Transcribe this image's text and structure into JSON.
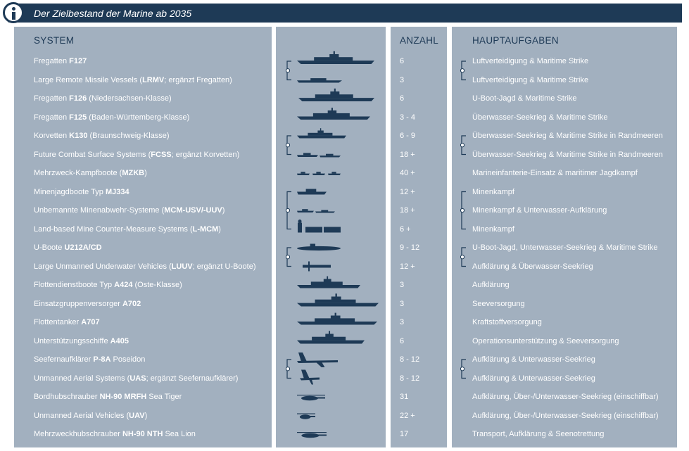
{
  "header": {
    "title": "Der Zielbestand der Marine ab 2035",
    "icon": "info-icon"
  },
  "columns": {
    "system": "SYSTEM",
    "count": "ANZAHL",
    "tasks": "HAUPTAUFGABEN"
  },
  "colors": {
    "header": "#1e3a56",
    "panel": "#a2b0bf",
    "silhouette": "#1e3a56",
    "text": "#ffffff"
  },
  "rows": [
    {
      "pre": "Fregatten ",
      "bold": "F127",
      "post": "",
      "count": "6",
      "task": "Luftverteidigung & Maritime Strike",
      "icon": "frigate-f127-icon"
    },
    {
      "pre": "Large Remote Missile Vessels (",
      "bold": "LRMV",
      "post": "; ergänzt Fregatten)",
      "count": "3",
      "task": "Luftverteidigung & Maritime Strike",
      "icon": "missile-vessel-icon"
    },
    {
      "pre": "Fregatten ",
      "bold": "F126",
      "post": " (Niedersachsen-Klasse)",
      "count": "6",
      "task": "U-Boot-Jagd & Maritime Strike",
      "icon": "frigate-f126-icon"
    },
    {
      "pre": "Fregatten ",
      "bold": "F125",
      "post": " (Baden-Württemberg-Klasse)",
      "count": "3 - 4",
      "task": "Überwasser-Seekrieg & Maritime Strike",
      "icon": "frigate-f125-icon"
    },
    {
      "pre": "Korvetten ",
      "bold": "K130",
      "post": " (Braunschweig-Klasse)",
      "count": "6 - 9",
      "task": "Überwasser-Seekrieg & Maritime Strike in Randmeeren",
      "icon": "corvette-icon"
    },
    {
      "pre": "Future Combat Surface Systems (",
      "bold": "FCSS",
      "post": "; ergänzt Korvetten)",
      "count": "18 +",
      "task": "Überwasser-Seekrieg & Maritime Strike in Randmeeren",
      "icon": "fcss-icon"
    },
    {
      "pre": "Mehrzweck-Kampfboote (",
      "bold": "MZKB",
      "post": ")",
      "count": "40 +",
      "task": "Marineinfanterie-Einsatz & maritimer Jagdkampf",
      "icon": "combat-boat-icon"
    },
    {
      "pre": "Minenjagdboote Typ ",
      "bold": "MJ334",
      "post": "",
      "count": "12 +",
      "task": "Minenkampf",
      "icon": "minehunter-icon"
    },
    {
      "pre": "Unbemannte Minenabwehr-Systeme (",
      "bold": "MCM-USV/-UUV",
      "post": ")",
      "count": "18 +",
      "task": "Minenkampf & Unterwasser-Aufklärung",
      "icon": "mcm-drone-icon"
    },
    {
      "pre": "Land-based Mine Counter-Measure Systems (",
      "bold": "L-MCM",
      "post": ")",
      "count": "6 +",
      "task": "Minenkampf",
      "icon": "container-icon"
    },
    {
      "pre": "U-Boote ",
      "bold": "U212A/CD",
      "post": "",
      "count": "9 - 12",
      "task": "U-Boot-Jagd, Unterwasser-Seekrieg & Maritime Strike",
      "icon": "submarine-icon"
    },
    {
      "pre": "Large Unmanned Underwater Vehicles (",
      "bold": "LUUV",
      "post": "; ergänzt U-Boote)",
      "count": "12 +",
      "task": "Aufklärung & Überwasser-Seekrieg",
      "icon": "luuv-icon"
    },
    {
      "pre": "Flottendienstboote Typ ",
      "bold": "A424",
      "post": " (Oste-Klasse)",
      "count": "3",
      "task": "Aufklärung",
      "icon": "fleet-service-boat-icon"
    },
    {
      "pre": "Einsatzgruppenversorger ",
      "bold": "A702",
      "post": "",
      "count": "3",
      "task": "Seeversorgung",
      "icon": "supply-ship-icon"
    },
    {
      "pre": "Flottentanker ",
      "bold": "A707",
      "post": "",
      "count": "3",
      "task": "Kraftstoffversorgung",
      "icon": "tanker-icon"
    },
    {
      "pre": "Unterstützungsschiffe ",
      "bold": "A405",
      "post": "",
      "count": "6",
      "task": "Operationsunterstützung & Seeversorgung",
      "icon": "support-ship-icon"
    },
    {
      "pre": "Seefernaufklärer ",
      "bold": "P-8A",
      "post": " Poseidon",
      "count": "8 - 12",
      "task": "Aufklärung & Unterwasser-Seekrieg",
      "icon": "patrol-aircraft-icon"
    },
    {
      "pre": "Unmanned Aerial Systems (",
      "bold": "UAS",
      "post": "; ergänzt Seefernaufklärer)",
      "count": "8 - 12",
      "task": "Aufklärung & Unterwasser-Seekrieg",
      "icon": "uas-icon"
    },
    {
      "pre": "Bordhubschrauber ",
      "bold": "NH-90 MRFH",
      "post": " Sea Tiger",
      "count": "31",
      "task": "Aufklärung, Über-/Unterwasser-Seekrieg (einschiffbar)",
      "icon": "helicopter-icon"
    },
    {
      "pre": "Unmanned Aerial Vehicles (",
      "bold": "UAV",
      "post": ")",
      "count": "22 +",
      "task": "Aufklärung, Über-/Unterwasser-Seekrieg (einschiffbar)",
      "icon": "uav-icon"
    },
    {
      "pre": "Mehrzweckhubschrauber ",
      "bold": "NH-90 NTH",
      "post": " Sea Lion",
      "count": "17",
      "task": "Transport, Aufklärung & Seenotrettung",
      "icon": "helicopter-icon"
    }
  ]
}
